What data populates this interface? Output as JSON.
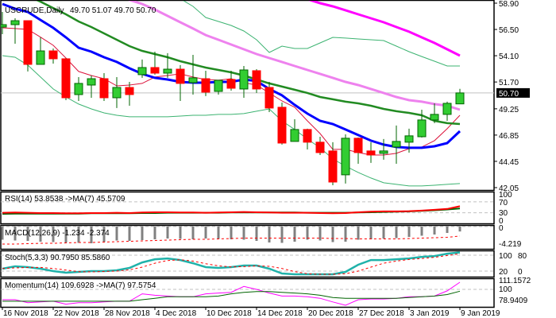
{
  "header": {
    "symbol": "USCRUDE,Daily",
    "ohlc": "49.70 51.07 49.70 50.70"
  },
  "colors": {
    "bull": "#32CD32",
    "bear": "#FF0000",
    "wick": "#006400",
    "ma_fast": "#DC143C",
    "ma_blue": "#0000FF",
    "ma_green": "#228B22",
    "ma_violet": "#EE82EE",
    "ma_magenta": "#FF00FF",
    "bands": "#3CB371",
    "stoch": "#20B2AA",
    "macd_bar": "#808080"
  },
  "chart_data": [
    {
      "type": "candlestick",
      "title": "USCRUDE,Daily",
      "ylim": [
        42.05,
        58.9
      ],
      "y_ticks": [
        "58.90",
        "56.50",
        "54.10",
        "51.70",
        "49.25",
        "46.85",
        "44.45",
        "42.05"
      ],
      "current_price": "50.70",
      "x_labels": [
        {
          "index": 0,
          "label": "16 Nov 2018"
        },
        {
          "index": 4,
          "label": "22 Nov 2018"
        },
        {
          "index": 8,
          "label": "28 Nov 2018"
        },
        {
          "index": 12,
          "label": "4 Dec 2018"
        },
        {
          "index": 16,
          "label": "10 Dec 2018"
        },
        {
          "index": 20,
          "label": "14 Dec 2018"
        },
        {
          "index": 24,
          "label": "20 Dec 2018"
        },
        {
          "index": 28,
          "label": "27 Dec 2018"
        },
        {
          "index": 32,
          "label": "3 Jan 2019"
        },
        {
          "index": 36,
          "label": "9 Jan 2019"
        }
      ],
      "ohlc": [
        [
          56.72,
          58.1,
          56.07,
          56.94
        ],
        [
          56.94,
          57.52,
          55.2,
          57.3
        ],
        [
          57.3,
          57.3,
          52.66,
          53.31
        ],
        [
          53.31,
          55.78,
          53.31,
          54.54
        ],
        [
          54.54,
          54.76,
          53.38,
          53.82
        ],
        [
          53.82,
          53.89,
          50.04,
          50.26
        ],
        [
          50.55,
          52.15,
          49.97,
          51.57
        ],
        [
          51.42,
          52.29,
          50.26,
          52.0
        ],
        [
          52.0,
          52.51,
          49.97,
          50.26
        ],
        [
          50.26,
          52.15,
          49.32,
          51.2
        ],
        [
          51.2,
          51.71,
          49.53,
          50.55
        ],
        [
          52.37,
          53.75,
          52.08,
          53.02
        ],
        [
          53.02,
          54.47,
          52.37,
          52.51
        ],
        [
          52.51,
          54.33,
          52.08,
          52.87
        ],
        [
          52.87,
          53.24,
          49.97,
          51.57
        ],
        [
          51.64,
          54.18,
          50.55,
          52.08
        ],
        [
          52.0,
          52.73,
          50.41,
          50.77
        ],
        [
          50.84,
          51.86,
          50.55,
          51.86
        ],
        [
          51.93,
          52.73,
          50.91,
          51.13
        ],
        [
          51.06,
          53.16,
          50.26,
          52.8
        ],
        [
          52.73,
          52.87,
          50.7,
          51.06
        ],
        [
          51.2,
          51.71,
          48.95,
          49.32
        ],
        [
          49.39,
          49.82,
          45.98,
          46.12
        ],
        [
          46.27,
          48.3,
          46.27,
          47.36
        ],
        [
          47.36,
          47.43,
          45.54,
          46.2
        ],
        [
          46.2,
          46.7,
          45.03,
          45.25
        ],
        [
          45.4,
          46.2,
          42.27,
          42.56
        ],
        [
          43.22,
          46.92,
          42.42,
          46.56
        ],
        [
          46.56,
          46.63,
          44.23,
          45.25
        ],
        [
          45.4,
          46.2,
          44.31,
          45.03
        ],
        [
          45.18,
          46.49,
          44.6,
          45.4
        ],
        [
          45.76,
          47.72,
          44.23,
          46.27
        ],
        [
          46.2,
          47.43,
          45.25,
          46.78
        ],
        [
          46.7,
          49.17,
          46.63,
          48.23
        ],
        [
          48.23,
          49.75,
          47.94,
          48.74
        ],
        [
          48.74,
          49.9,
          48.15,
          49.75
        ],
        [
          49.7,
          51.07,
          49.7,
          50.7
        ]
      ],
      "overlays": [
        {
          "name": "ma-red",
          "color": "ma_fast",
          "width": 1,
          "start": 0,
          "values": [
            56.65,
            56.58,
            56.5,
            55.8,
            55.05,
            53.89,
            52.66,
            52.29,
            52.0,
            51.35,
            51.42,
            51.57,
            52.15,
            52.29,
            52.44,
            52.15,
            51.93,
            51.86,
            52.0,
            51.64,
            51.42,
            50.7,
            49.97,
            49.39,
            48.15,
            46.99,
            45.54,
            45.54,
            45.25,
            45.03,
            45.03,
            45.18,
            45.61,
            45.76,
            46.34,
            47.43,
            48.66
          ]
        },
        {
          "name": "ma-blue",
          "color": "ma_blue",
          "width": 3,
          "start": 0,
          "values": [
            58.83,
            58.39,
            58.1,
            57.37,
            56.65,
            55.78,
            54.83,
            54.47,
            53.96,
            53.53,
            52.95,
            52.44,
            52.08,
            51.93,
            51.71,
            51.64,
            51.64,
            51.71,
            51.71,
            51.93,
            51.79,
            51.06,
            50.48,
            49.61,
            48.81,
            48.15,
            47.86,
            47.36,
            46.85,
            46.34,
            45.98,
            45.76,
            45.69,
            45.69,
            45.83,
            46.12,
            47.21
          ]
        },
        {
          "name": "ma-green",
          "color": "ma_green",
          "width": 2.5,
          "start": 0,
          "values": [
            60.64,
            60.06,
            59.55,
            59.04,
            58.46,
            57.88,
            57.23,
            56.72,
            56.14,
            55.56,
            54.98,
            54.54,
            54.25,
            53.96,
            53.6,
            53.31,
            53.02,
            52.8,
            52.58,
            52.29,
            51.93,
            51.57,
            51.28,
            50.99,
            50.7,
            50.33,
            50.12,
            49.9,
            49.75,
            49.53,
            49.24,
            49.03,
            48.88,
            48.66,
            48.15,
            47.94,
            47.86
          ]
        },
        {
          "name": "ma-violet",
          "color": "ma_violet",
          "width": 3,
          "start": 8,
          "values": [
            60.06,
            59.63,
            59.19,
            58.83,
            58.32,
            57.74,
            57.16,
            56.58,
            55.99,
            55.56,
            55.12,
            54.69,
            54.25,
            53.89,
            53.53,
            53.16,
            52.8,
            52.44,
            52.08,
            51.71,
            51.42,
            51.06,
            50.7,
            50.33,
            50.04,
            49.9,
            49.68,
            49.53,
            49.17
          ]
        },
        {
          "name": "ma-magenta",
          "color": "ma_magenta",
          "width": 3,
          "start": 24,
          "values": [
            59.26,
            58.9,
            58.61,
            58.25,
            57.88,
            57.52,
            57.16,
            56.72,
            56.29,
            55.78,
            55.27,
            54.69,
            54.11
          ]
        },
        {
          "name": "band-upper",
          "color": "bands",
          "width": 1,
          "start": 14,
          "values": [
            59.3,
            58.61,
            57.59,
            57.23,
            56.87,
            56.36,
            55.56,
            54.4,
            54.98,
            54.76,
            54.76,
            55.27,
            55.78,
            55.71,
            55.63,
            55.56,
            55.49,
            54.98,
            54.47,
            54.03,
            53.6,
            53.16,
            53.16
          ]
        },
        {
          "name": "band-lower",
          "color": "bands",
          "width": 1,
          "start": 0,
          "values": [
            54.11,
            53.96,
            53.24,
            52.15,
            51.06,
            50.33,
            49.68,
            49.24,
            48.88,
            48.66,
            48.52,
            48.52,
            48.52,
            48.52,
            48.59,
            48.66,
            48.66,
            48.74,
            48.74,
            48.81,
            49.03,
            49.24,
            48.15,
            47.36,
            46.49,
            45.69,
            44.67,
            44.02,
            43.44,
            42.93,
            42.49,
            42.35,
            42.2,
            42.2,
            42.27,
            42.35,
            42.42
          ]
        }
      ]
    },
    {
      "type": "line",
      "title": "RSI(14) 53.8538 ->MA(7) 45.5709",
      "ylim": [
        0,
        100
      ],
      "levels": [
        70,
        30
      ],
      "y_ticks": [
        "100",
        "70",
        "30",
        "0"
      ],
      "series": [
        {
          "name": "RSI(14)",
          "color": "bear",
          "values": [
            30,
            31,
            30,
            29,
            29,
            28,
            28,
            29,
            29,
            30,
            29,
            31,
            32,
            32,
            31,
            31,
            30,
            31,
            32,
            33,
            32,
            31,
            30,
            30,
            30,
            29,
            28,
            29,
            32,
            34,
            35,
            35,
            36,
            38,
            41,
            44,
            53.85
          ]
        },
        {
          "name": "MA(7)",
          "color": "wick",
          "values": [
            26,
            27,
            27,
            27,
            27,
            27,
            27,
            28,
            28,
            28,
            28,
            29,
            29,
            30,
            30,
            30,
            30,
            30,
            31,
            31,
            31,
            31,
            31,
            31,
            30,
            30,
            30,
            30,
            31,
            32,
            33,
            34,
            35,
            37,
            39,
            42,
            45.57
          ]
        }
      ]
    },
    {
      "type": "bar",
      "title": "MACD(12,26,9) -1.234 -2.374",
      "ylim": [
        -4.219,
        0
      ],
      "y_ticks": [
        "0",
        "-4.219"
      ],
      "series": [
        {
          "name": "MACD",
          "color": "macd_bar",
          "values": [
            -3.3,
            -3.5,
            -3.6,
            -3.8,
            -3.9,
            -4.0,
            -4.1,
            -4.2,
            -3.9,
            -3.5,
            -3.6,
            -3.4,
            -3.2,
            -3.0,
            -3.1,
            -3.2,
            -3.0,
            -3.1,
            -3.2,
            -3.3,
            -3.6,
            -4.0,
            -4.1,
            -3.8,
            -3.3,
            -3.5,
            -3.9,
            -3.8,
            -3.3,
            -3.2,
            -3.0,
            -2.9,
            -2.6,
            -2.3,
            -2.0,
            -1.6,
            -1.234
          ]
        },
        {
          "name": "Signal",
          "color": "bear",
          "values": [
            -4.4,
            -4.4,
            -4.3,
            -4.2,
            -4.2,
            -4.1,
            -4.0,
            -4.0,
            -3.9,
            -3.8,
            -3.7,
            -3.6,
            -3.5,
            -3.4,
            -3.3,
            -3.2,
            -3.2,
            -3.1,
            -3.0,
            -2.9,
            -2.9,
            -2.9,
            -2.9,
            -2.9,
            -2.9,
            -2.9,
            -3.0,
            -3.0,
            -3.1,
            -3.1,
            -3.1,
            -3.1,
            -3.0,
            -2.9,
            -2.8,
            -2.7,
            -2.374
          ]
        }
      ]
    },
    {
      "type": "line",
      "title": "Stoch(5,3,3) 90.7950 85.5860",
      "ylim": [
        0,
        100
      ],
      "levels": [
        80,
        20
      ],
      "y_ticks": [
        "100",
        "80",
        "20",
        "0"
      ],
      "series": [
        {
          "name": "Main",
          "color": "stoch",
          "values": [
            29,
            38,
            35,
            29,
            20,
            14,
            17,
            20,
            20,
            23,
            32,
            53,
            65,
            68,
            62,
            50,
            35,
            32,
            35,
            41,
            41,
            29,
            11,
            8,
            8,
            8,
            8,
            17,
            44,
            62,
            62,
            65,
            68,
            74,
            77,
            86,
            90.795
          ]
        },
        {
          "name": "Signal",
          "color": "bear",
          "values": [
            30,
            32,
            34,
            34,
            30,
            24,
            18,
            17,
            19,
            20,
            25,
            35,
            50,
            60,
            63,
            58,
            48,
            40,
            36,
            37,
            40,
            38,
            30,
            18,
            10,
            8,
            8,
            10,
            20,
            35,
            50,
            58,
            64,
            68,
            72,
            79,
            85.586
          ]
        }
      ]
    },
    {
      "type": "line",
      "title": "Momentum(14) 109.6928 ->MA(7) 97.5754",
      "ylim": [
        78.9409,
        111.1572
      ],
      "levels": [
        100
      ],
      "y_ticks": [
        "111.1572",
        "100",
        "78.9409"
      ],
      "series": [
        {
          "name": "Momentum(14)",
          "color": "ma_magenta",
          "values": [
            86,
            86,
            82,
            83,
            84,
            80,
            82,
            82,
            83,
            84,
            84,
            94,
            92,
            91,
            90,
            90,
            94,
            95,
            96,
            104,
            100,
            95,
            91,
            91,
            90,
            88,
            83,
            78.5,
            86,
            87,
            87,
            88,
            90,
            90,
            91,
            98,
            109.69
          ]
        },
        {
          "name": "MA(7)",
          "color": "wick",
          "values": [
            84,
            84,
            84,
            84,
            84,
            84,
            84,
            84,
            84,
            84,
            84,
            86,
            88,
            90,
            90,
            90,
            90,
            91,
            94,
            96,
            97,
            97,
            96,
            95,
            94,
            92,
            89,
            88,
            88,
            88,
            88,
            88,
            89,
            90,
            91,
            93,
            97.58
          ]
        }
      ]
    }
  ]
}
